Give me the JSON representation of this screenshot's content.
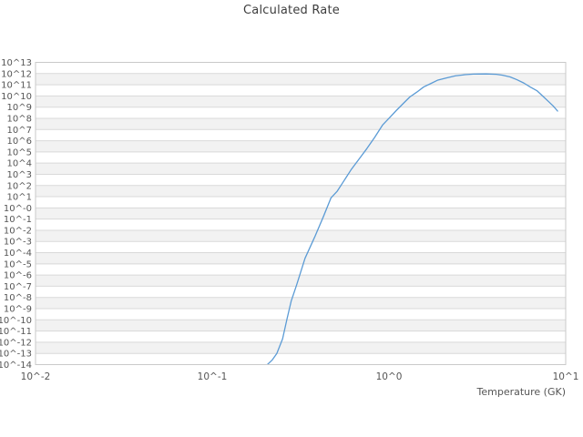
{
  "chart_data": {
    "type": "line",
    "title": "Calculated Rate",
    "xlabel": "Temperature (GK)",
    "ylabel": "",
    "x_scale": "log",
    "y_scale": "log",
    "x_range_log10": [
      -2,
      1
    ],
    "y_range_log10": [
      -14,
      13
    ],
    "x_tick_labels": [
      "10^-2",
      "10^-1",
      "10^0",
      "10^1"
    ],
    "x_tick_log10": [
      -2,
      -1,
      0,
      1
    ],
    "y_tick_labels": [
      "10^13",
      "10^12",
      "10^11",
      "10^10",
      "10^9",
      "10^8",
      "10^7",
      "10^6",
      "10^5",
      "10^4",
      "10^3",
      "10^2",
      "10^1",
      "10^-0",
      "10^-1",
      "10^-2",
      "10^-3",
      "10^-4",
      "10^-5",
      "10^-6",
      "10^-7",
      "10^-8",
      "10^-9",
      "10^-10",
      "10^-11",
      "10^-12",
      "10^-13",
      "10^-14"
    ],
    "y_tick_log10": [
      13,
      12,
      11,
      10,
      9,
      8,
      7,
      6,
      5,
      4,
      3,
      2,
      1,
      0,
      -1,
      -2,
      -3,
      -4,
      -5,
      -6,
      -7,
      -8,
      -9,
      -10,
      -11,
      -12,
      -13,
      -14
    ],
    "grid": "horizontal-only",
    "legend": "none",
    "series": [
      {
        "name": "Calculated Rate",
        "color": "#5b9bd5",
        "x_gk": [
          0.195,
          0.205,
          0.218,
          0.232,
          0.25,
          0.265,
          0.28,
          0.3,
          0.335,
          0.38,
          0.425,
          0.47,
          0.51,
          0.55,
          0.61,
          0.68,
          0.75,
          0.83,
          0.92,
          1.0,
          1.1,
          1.2,
          1.31,
          1.44,
          1.57,
          1.72,
          1.88,
          2.1,
          2.38,
          2.7,
          3.0,
          3.2,
          3.55,
          4.05,
          4.4,
          4.85,
          5.3,
          5.8,
          6.3,
          6.9,
          7.4,
          8.0,
          8.5,
          9.0
        ],
        "log10_rate": [
          -14.3,
          -14.0,
          -13.6,
          -13.0,
          -11.7,
          -9.9,
          -8.3,
          -6.9,
          -4.5,
          -2.6,
          -0.8,
          0.9,
          1.5,
          2.3,
          3.4,
          4.4,
          5.3,
          6.3,
          7.4,
          8.0,
          8.7,
          9.3,
          9.9,
          10.35,
          10.8,
          11.1,
          11.4,
          11.6,
          11.8,
          11.9,
          11.95,
          11.96,
          11.97,
          11.93,
          11.85,
          11.7,
          11.45,
          11.15,
          10.8,
          10.45,
          10.0,
          9.5,
          9.1,
          8.65
        ]
      }
    ],
    "peak": {
      "temperature_gk": 3.55,
      "log10_rate": 11.97
    }
  },
  "colors": {
    "background": "#ffffff",
    "band_light": "#ffffff",
    "band_shade": "#f2f2f2",
    "gridline": "#d9d9d9",
    "plot_border": "#c9c9c9",
    "line": "#5b9bd5",
    "title_text": "#3d3d3d",
    "tick_text": "#555555"
  }
}
